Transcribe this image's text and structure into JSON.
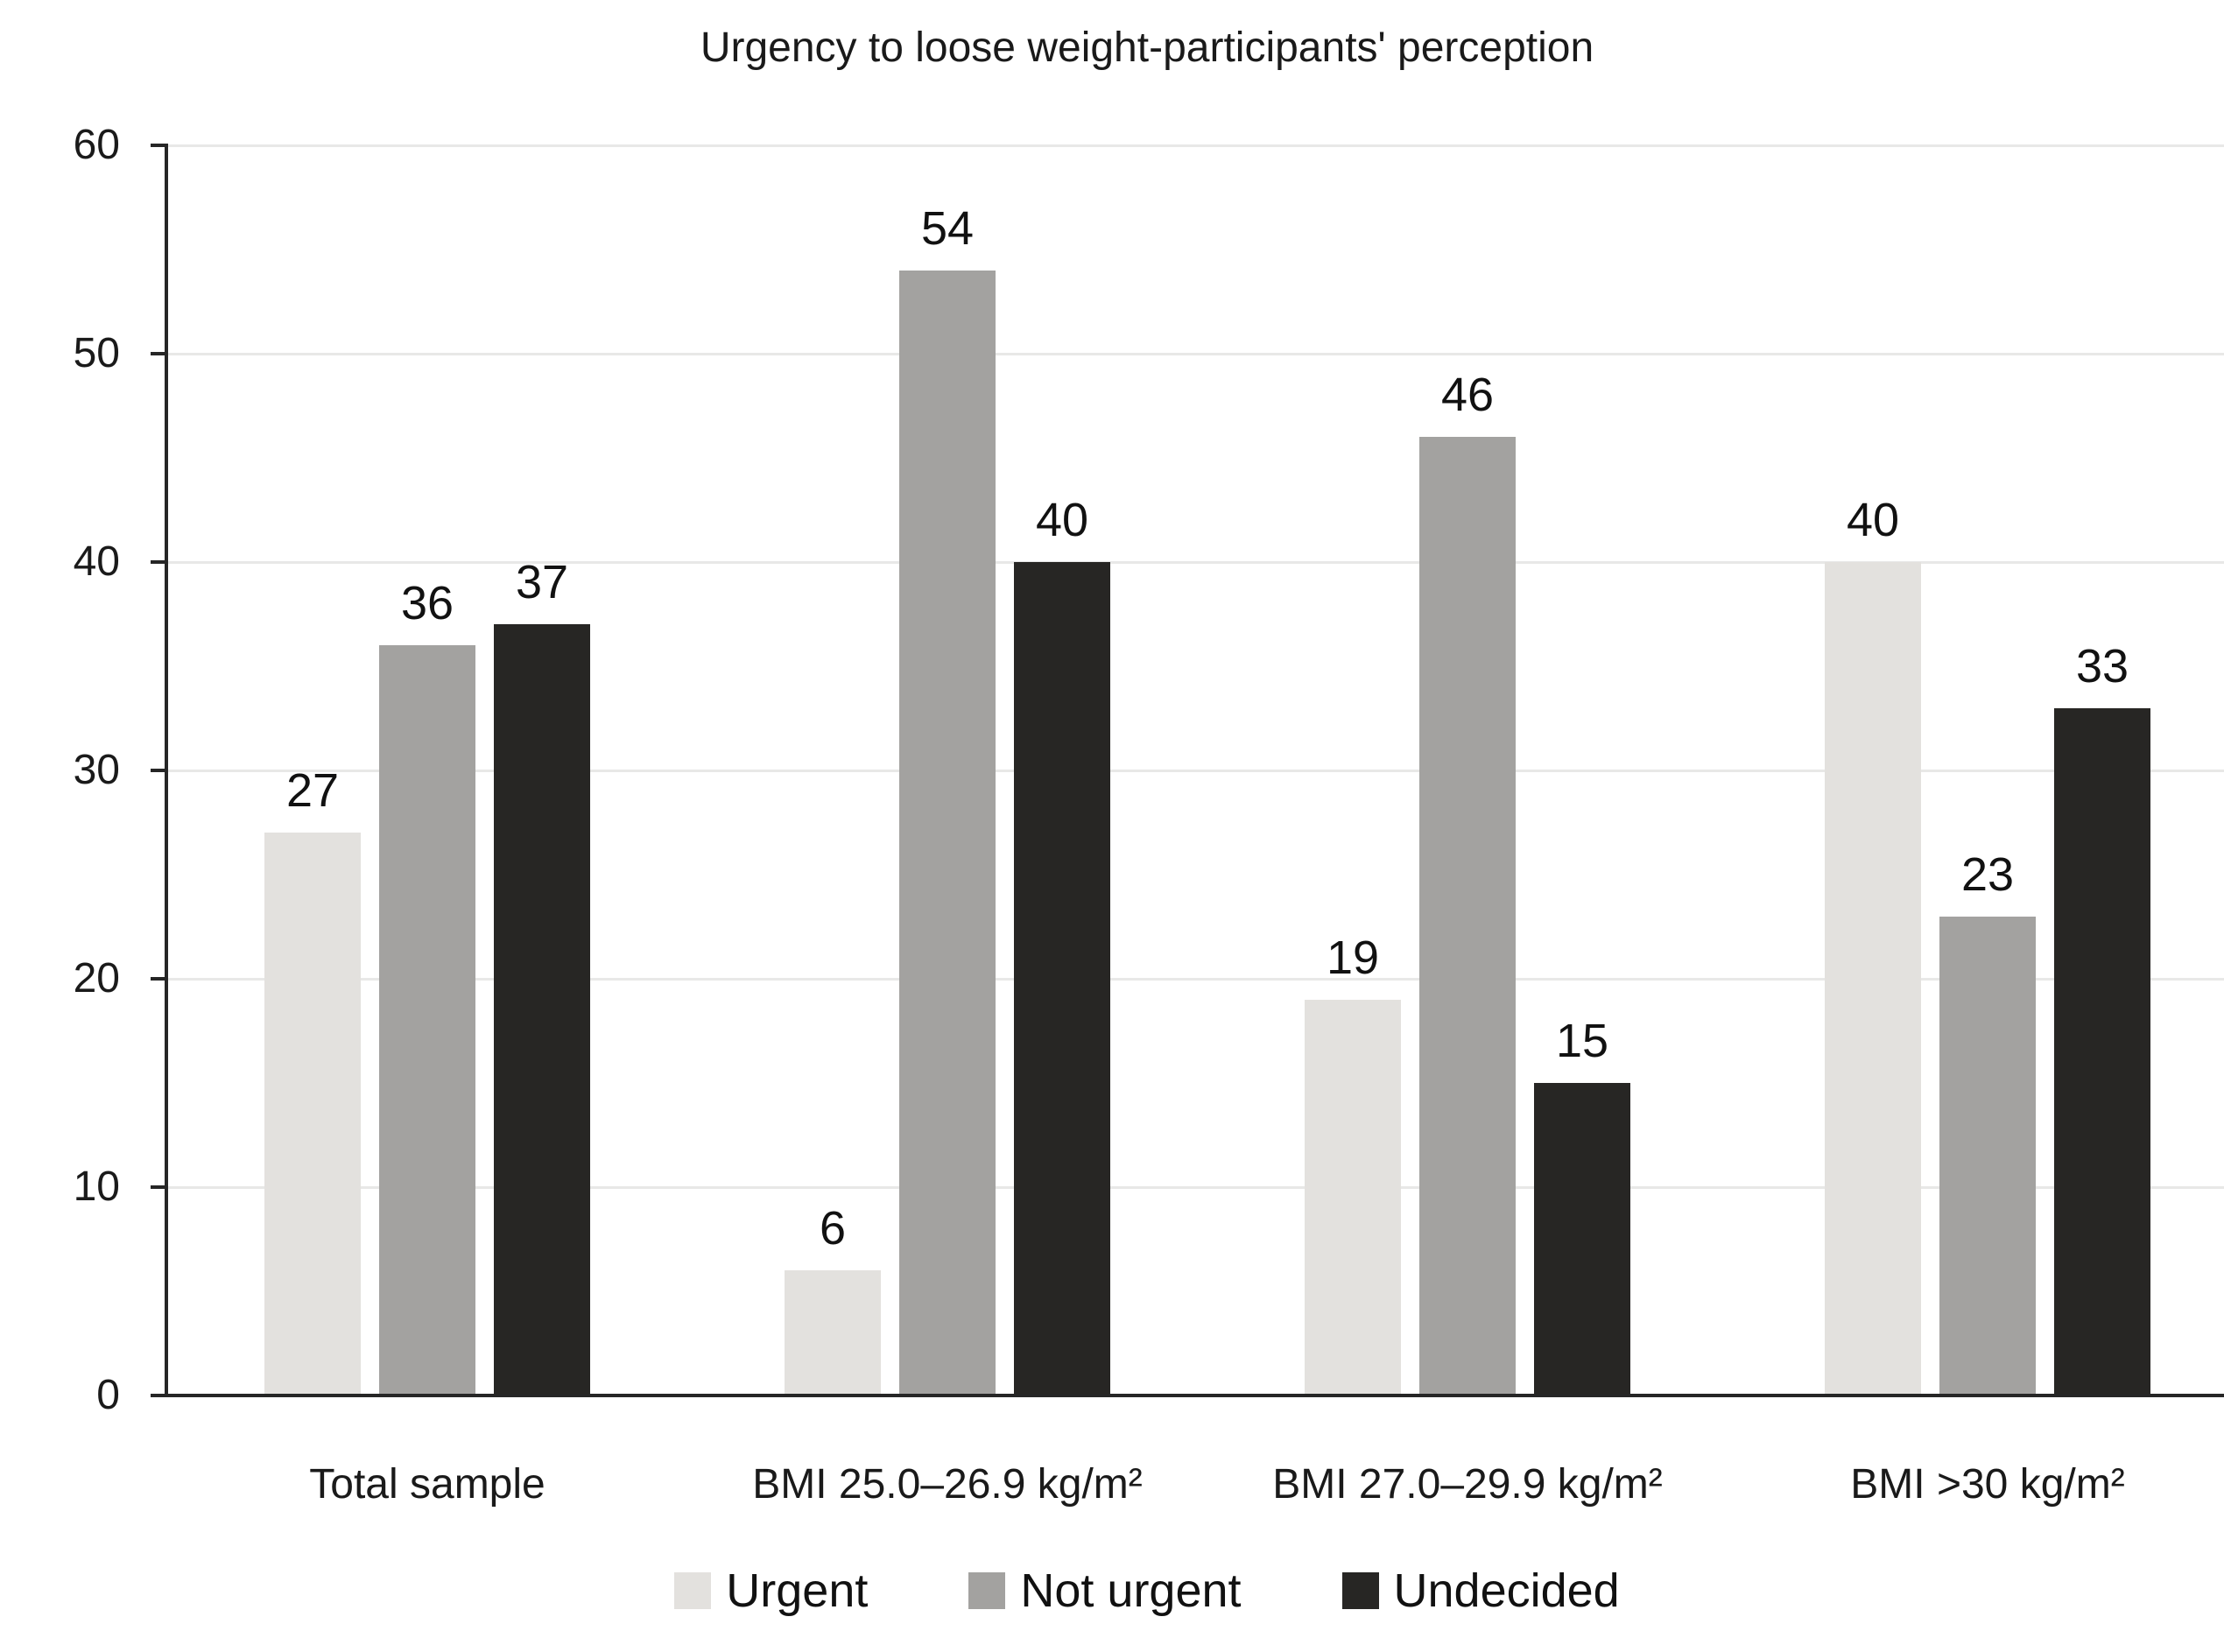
{
  "chart_data": {
    "type": "bar",
    "title": "Urgency to loose weight-participants' perception",
    "categories": [
      "Total sample",
      "BMI 25.0–26.9 kg/m²",
      "BMI 27.0–29.9 kg/m²",
      "BMI >30 kg/m²"
    ],
    "series": [
      {
        "name": "Urgent",
        "color": "#e3e1de",
        "values": [
          27,
          6,
          19,
          40
        ]
      },
      {
        "name": "Not urgent",
        "color": "#a3a2a0",
        "values": [
          36,
          54,
          46,
          23
        ]
      },
      {
        "name": "Undecided",
        "color": "#272624",
        "values": [
          37,
          40,
          15,
          33
        ]
      }
    ],
    "ylim": [
      0,
      60
    ],
    "yticks": [
      0,
      10,
      20,
      30,
      40,
      50,
      60
    ],
    "grid": true,
    "grid_axis": "y",
    "legend_position": "bottom",
    "value_labels": true,
    "xlabel": "",
    "ylabel": ""
  },
  "colors": {
    "background": "#ffffff",
    "axis": "#262626",
    "gridline": "#e8e8e7",
    "text": "#1a1a1a"
  }
}
